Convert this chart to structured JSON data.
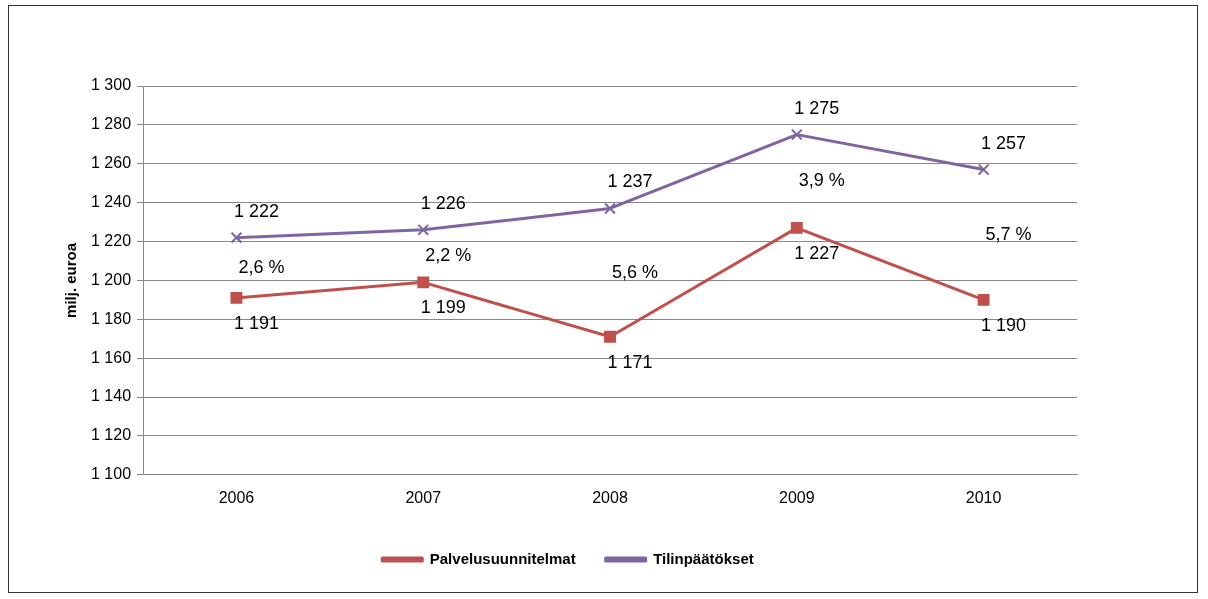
{
  "chart_data": {
    "type": "line",
    "ylabel": "milj. euroa",
    "categories": [
      "2006",
      "2007",
      "2008",
      "2009",
      "2010"
    ],
    "series": [
      {
        "name": "Palvelusuunnitelmat",
        "color": "#c0504d",
        "marker": "square",
        "values": [
          1191,
          1199,
          1171,
          1227,
          1190
        ],
        "value_labels": [
          "1 191",
          "1 199",
          "1 171",
          "1 227",
          "1 190"
        ]
      },
      {
        "name": "Tilinpäätökset",
        "color": "#8064a2",
        "marker": "cross",
        "values": [
          1222,
          1226,
          1237,
          1275,
          1257
        ],
        "value_labels": [
          "1 222",
          "1 226",
          "1 237",
          "1 275",
          "1 257"
        ]
      }
    ],
    "annotations": [
      "2,6 %",
      "2,2 %",
      "5,6 %",
      "3,9 %",
      "5,7 %"
    ],
    "ylim": [
      1100,
      1300
    ],
    "yticks": [
      {
        "value": 1100,
        "label": "1 100"
      },
      {
        "value": 1120,
        "label": "1 120"
      },
      {
        "value": 1140,
        "label": "1 140"
      },
      {
        "value": 1160,
        "label": "1 160"
      },
      {
        "value": 1180,
        "label": "1 180"
      },
      {
        "value": 1200,
        "label": "1 200"
      },
      {
        "value": 1220,
        "label": "1 220"
      },
      {
        "value": 1240,
        "label": "1 240"
      },
      {
        "value": 1260,
        "label": "1 260"
      },
      {
        "value": 1280,
        "label": "1 280"
      },
      {
        "value": 1300,
        "label": "1 300"
      }
    ],
    "grid": "y",
    "legend": "bottom",
    "line_style": "solid"
  }
}
